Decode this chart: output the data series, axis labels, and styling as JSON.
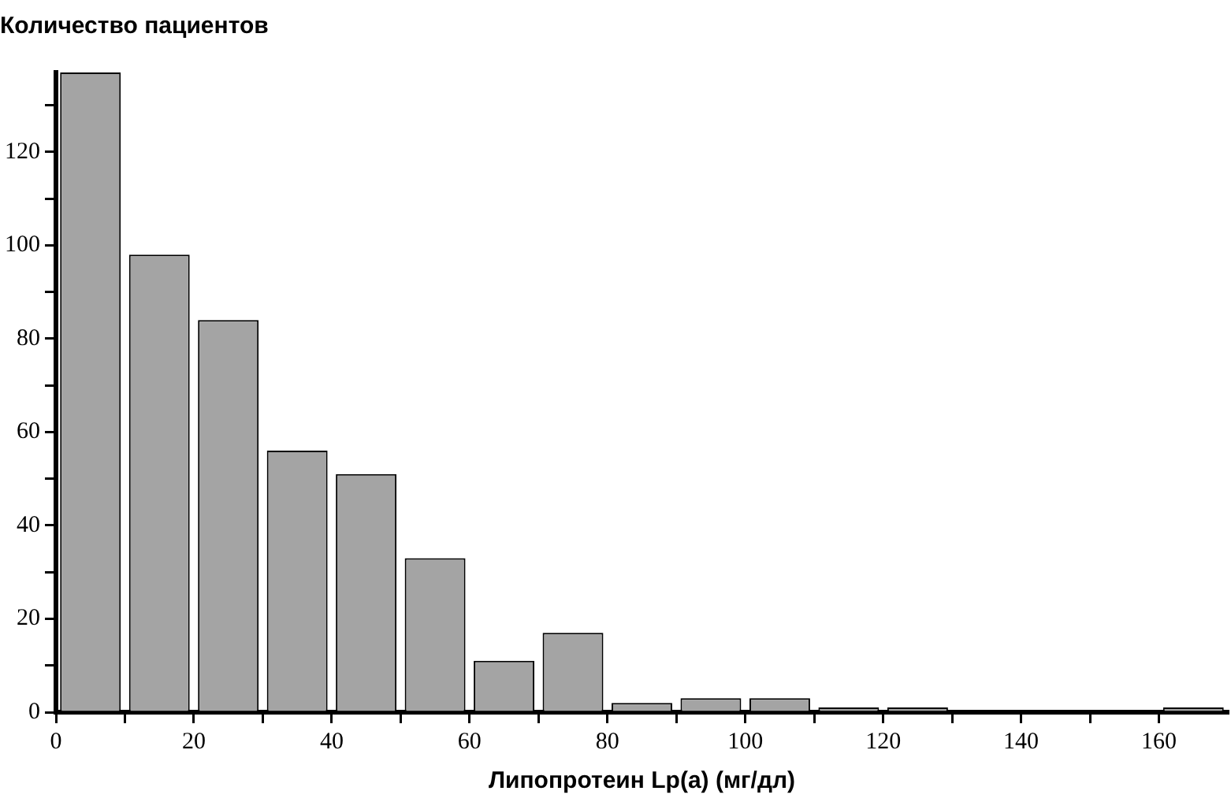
{
  "chart_data": {
    "type": "histogram",
    "title": "Количество пациентов",
    "xlabel": "Липопротеин Lp(a) (мг/дл)",
    "bins": [
      0,
      10,
      20,
      30,
      40,
      50,
      60,
      70,
      80,
      90,
      100,
      110,
      120,
      130,
      140,
      150,
      160,
      170
    ],
    "values": [
      137,
      98,
      84,
      56,
      51,
      33,
      11,
      17,
      2,
      3,
      3,
      1,
      1,
      0,
      0,
      0,
      1
    ],
    "color": "#a4a4a4",
    "xlim": [
      0,
      170
    ],
    "ylim": [
      0,
      137
    ],
    "xticks": [
      0,
      {
        "value": 10,
        "label": null
      },
      20,
      {
        "value": 30,
        "label": null
      },
      40,
      {
        "value": 50,
        "label": null
      },
      60,
      {
        "value": 70,
        "label": null
      },
      80,
      {
        "value": 90,
        "label": null
      },
      100,
      {
        "value": 110,
        "label": null
      },
      120,
      {
        "value": 130,
        "label": null
      },
      140,
      {
        "value": 150,
        "label": null
      },
      160
    ],
    "yticks": [
      0,
      {
        "value": 10,
        "label": null
      },
      20,
      {
        "value": 30,
        "label": null
      },
      40,
      {
        "value": 50,
        "label": null
      },
      60,
      {
        "value": 70,
        "label": null
      },
      80,
      {
        "value": 90,
        "label": null
      },
      100,
      {
        "value": 110,
        "label": null
      },
      120,
      {
        "value": 130,
        "label": null
      }
    ],
    "grid": false,
    "legend": false
  }
}
